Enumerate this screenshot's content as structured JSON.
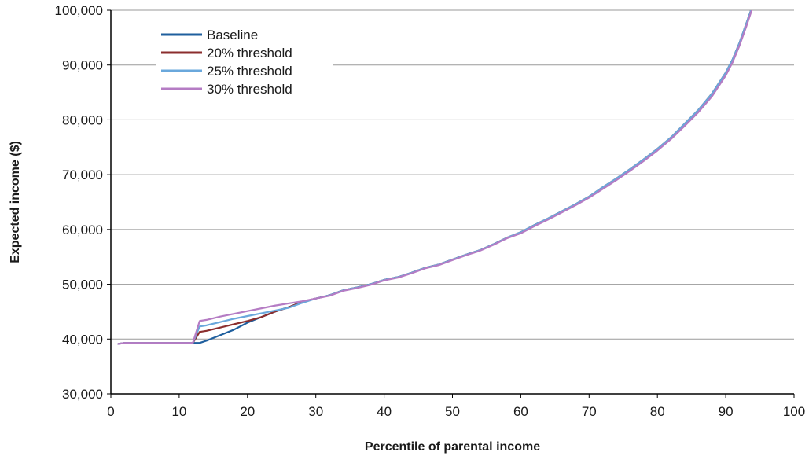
{
  "chart_data": {
    "type": "line",
    "title": "",
    "xlabel": "Percentile of parental income",
    "ylabel": "Expected income ($)",
    "xlim": [
      0,
      100
    ],
    "ylim": [
      30000,
      100000
    ],
    "x_ticks": [
      0,
      10,
      20,
      30,
      40,
      50,
      60,
      70,
      80,
      90,
      100
    ],
    "x_tick_labels": [
      "0",
      "10",
      "20",
      "30",
      "40",
      "50",
      "60",
      "70",
      "80",
      "90",
      "100"
    ],
    "y_ticks": [
      30000,
      40000,
      50000,
      60000,
      70000,
      80000,
      90000,
      100000
    ],
    "y_tick_labels": [
      "30,000",
      "40,000",
      "50,000",
      "60,000",
      "70,000",
      "80,000",
      "90,000",
      "100,000"
    ],
    "grid": "horizontal",
    "legend_position": "top-left",
    "series": [
      {
        "name": "Baseline",
        "color": "#1f5f9e",
        "points": [
          [
            1,
            39100
          ],
          [
            2,
            39300
          ],
          [
            5,
            39300
          ],
          [
            10,
            39300
          ],
          [
            12,
            39300
          ],
          [
            13,
            39300
          ],
          [
            14,
            39700
          ],
          [
            16,
            40700
          ],
          [
            18,
            41700
          ],
          [
            20,
            43000
          ],
          [
            22,
            44000
          ],
          [
            24,
            45000
          ],
          [
            26,
            45800
          ],
          [
            28,
            46800
          ],
          [
            30,
            47400
          ],
          [
            32,
            48000
          ],
          [
            34,
            48900
          ],
          [
            36,
            49400
          ],
          [
            38,
            50000
          ],
          [
            40,
            50800
          ],
          [
            42,
            51300
          ],
          [
            44,
            52100
          ],
          [
            46,
            53000
          ],
          [
            48,
            53600
          ],
          [
            50,
            54500
          ],
          [
            52,
            55400
          ],
          [
            54,
            56200
          ],
          [
            56,
            57300
          ],
          [
            58,
            58500
          ],
          [
            60,
            59500
          ],
          [
            62,
            60800
          ],
          [
            64,
            62000
          ],
          [
            66,
            63300
          ],
          [
            68,
            64600
          ],
          [
            70,
            66000
          ],
          [
            72,
            67700
          ],
          [
            74,
            69300
          ],
          [
            76,
            71000
          ],
          [
            78,
            72800
          ],
          [
            80,
            74700
          ],
          [
            82,
            76800
          ],
          [
            84,
            79300
          ],
          [
            86,
            81800
          ],
          [
            88,
            84800
          ],
          [
            90,
            88600
          ],
          [
            91,
            91000
          ],
          [
            92,
            94000
          ],
          [
            93,
            97500
          ],
          [
            93.7,
            100000
          ]
        ]
      },
      {
        "name": "20% threshold",
        "color": "#8b2e2e",
        "points": [
          [
            1,
            39100
          ],
          [
            2,
            39300
          ],
          [
            5,
            39300
          ],
          [
            10,
            39300
          ],
          [
            12,
            39300
          ],
          [
            13,
            41300
          ],
          [
            14,
            41500
          ],
          [
            16,
            42100
          ],
          [
            18,
            42700
          ],
          [
            20,
            43300
          ],
          [
            22,
            44000
          ],
          [
            24,
            45000
          ],
          [
            26,
            45800
          ],
          [
            28,
            46800
          ],
          [
            30,
            47400
          ],
          [
            32,
            48000
          ],
          [
            34,
            48900
          ],
          [
            36,
            49400
          ],
          [
            38,
            50000
          ],
          [
            40,
            50800
          ],
          [
            42,
            51300
          ],
          [
            44,
            52100
          ],
          [
            46,
            53000
          ],
          [
            48,
            53600
          ],
          [
            50,
            54500
          ],
          [
            52,
            55400
          ],
          [
            54,
            56200
          ],
          [
            56,
            57300
          ],
          [
            58,
            58500
          ],
          [
            60,
            59500
          ],
          [
            62,
            60800
          ],
          [
            64,
            62000
          ],
          [
            66,
            63300
          ],
          [
            68,
            64600
          ],
          [
            70,
            66000
          ],
          [
            72,
            67700
          ],
          [
            74,
            69300
          ],
          [
            76,
            71000
          ],
          [
            78,
            72800
          ],
          [
            80,
            74700
          ],
          [
            82,
            76800
          ],
          [
            84,
            79300
          ],
          [
            86,
            81800
          ],
          [
            88,
            84800
          ],
          [
            90,
            88600
          ],
          [
            91,
            91000
          ],
          [
            92,
            94000
          ],
          [
            93,
            97500
          ],
          [
            93.7,
            100000
          ]
        ]
      },
      {
        "name": "25% threshold",
        "color": "#6aa8dc",
        "points": [
          [
            1,
            39100
          ],
          [
            2,
            39300
          ],
          [
            5,
            39300
          ],
          [
            10,
            39300
          ],
          [
            12,
            39300
          ],
          [
            13,
            42300
          ],
          [
            14,
            42500
          ],
          [
            16,
            43100
          ],
          [
            18,
            43700
          ],
          [
            20,
            44200
          ],
          [
            22,
            44700
          ],
          [
            24,
            45200
          ],
          [
            26,
            45700
          ],
          [
            28,
            46600
          ],
          [
            30,
            47400
          ],
          [
            32,
            48000
          ],
          [
            34,
            48900
          ],
          [
            36,
            49400
          ],
          [
            38,
            50000
          ],
          [
            40,
            50800
          ],
          [
            42,
            51300
          ],
          [
            44,
            52100
          ],
          [
            46,
            53000
          ],
          [
            48,
            53600
          ],
          [
            50,
            54500
          ],
          [
            52,
            55400
          ],
          [
            54,
            56200
          ],
          [
            56,
            57300
          ],
          [
            58,
            58500
          ],
          [
            60,
            59500
          ],
          [
            62,
            60800
          ],
          [
            64,
            62000
          ],
          [
            66,
            63300
          ],
          [
            68,
            64600
          ],
          [
            70,
            66000
          ],
          [
            72,
            67700
          ],
          [
            74,
            69300
          ],
          [
            76,
            71000
          ],
          [
            78,
            72800
          ],
          [
            80,
            74700
          ],
          [
            82,
            76800
          ],
          [
            84,
            79300
          ],
          [
            86,
            81800
          ],
          [
            88,
            84800
          ],
          [
            90,
            88600
          ],
          [
            91,
            91000
          ],
          [
            92,
            94000
          ],
          [
            93,
            97500
          ],
          [
            93.7,
            100000
          ]
        ]
      },
      {
        "name": "30% threshold",
        "color": "#b57cc4",
        "points": [
          [
            1,
            39100
          ],
          [
            2,
            39300
          ],
          [
            5,
            39300
          ],
          [
            10,
            39300
          ],
          [
            12,
            39300
          ],
          [
            13,
            43300
          ],
          [
            14,
            43500
          ],
          [
            16,
            44100
          ],
          [
            18,
            44600
          ],
          [
            20,
            45100
          ],
          [
            22,
            45600
          ],
          [
            24,
            46100
          ],
          [
            26,
            46500
          ],
          [
            28,
            46900
          ],
          [
            30,
            47400
          ],
          [
            32,
            47900
          ],
          [
            34,
            48800
          ],
          [
            36,
            49300
          ],
          [
            38,
            49900
          ],
          [
            40,
            50700
          ],
          [
            42,
            51200
          ],
          [
            44,
            52000
          ],
          [
            46,
            52900
          ],
          [
            48,
            53500
          ],
          [
            50,
            54400
          ],
          [
            52,
            55300
          ],
          [
            54,
            56100
          ],
          [
            56,
            57200
          ],
          [
            58,
            58400
          ],
          [
            60,
            59300
          ],
          [
            62,
            60600
          ],
          [
            64,
            61800
          ],
          [
            66,
            63100
          ],
          [
            68,
            64400
          ],
          [
            70,
            65800
          ],
          [
            72,
            67400
          ],
          [
            74,
            69000
          ],
          [
            76,
            70700
          ],
          [
            78,
            72500
          ],
          [
            80,
            74400
          ],
          [
            82,
            76500
          ],
          [
            84,
            78900
          ],
          [
            86,
            81400
          ],
          [
            88,
            84300
          ],
          [
            90,
            88100
          ],
          [
            91,
            90500
          ],
          [
            92,
            93500
          ],
          [
            93,
            97000
          ],
          [
            93.8,
            100000
          ]
        ]
      }
    ]
  }
}
